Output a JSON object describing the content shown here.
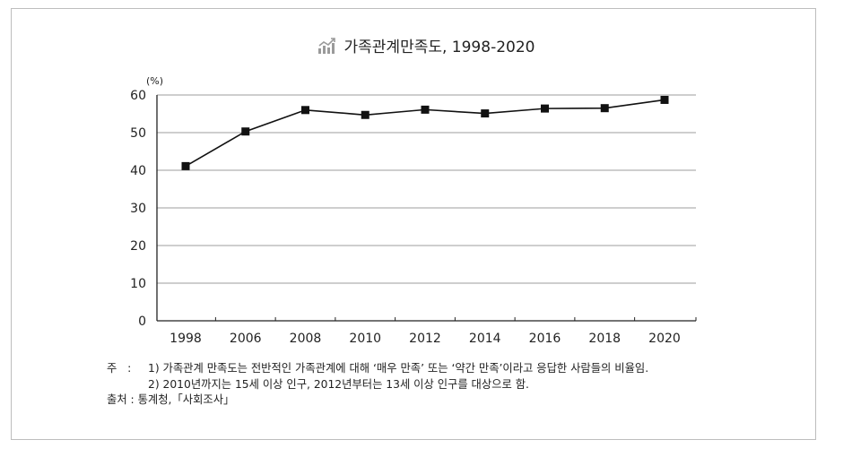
{
  "chart_data": {
    "type": "line",
    "title": "가족관계만족도, 1998-2020",
    "unit_label": "(%)",
    "x": [
      "1998",
      "2006",
      "2008",
      "2010",
      "2012",
      "2014",
      "2016",
      "2018",
      "2020"
    ],
    "series": [
      {
        "values": [
          41.1,
          50.3,
          56.0,
          54.7,
          56.1,
          55.1,
          56.4,
          56.5,
          58.7
        ]
      }
    ],
    "ylim": [
      0,
      60
    ],
    "yticks": [
      0,
      10,
      20,
      30,
      40,
      50,
      60
    ],
    "grid": true,
    "line_color": "#111111",
    "marker": "square",
    "icon": "chart-icon"
  },
  "notes": {
    "note_label": "주",
    "note_sep": ":",
    "note1": "1) 가족관계 만족도는 전반적인 가족관계에 대해 ‘매우 만족’ 또는 ‘약간 만족’이라고 응답한 사람들의 비율임.",
    "note2": "2) 2010년까지는 15세 이상 인구, 2012년부터는 13세 이상 인구를 대상으로 함.",
    "source_label": "출처",
    "source_text": "통계청,「사회조사」"
  }
}
